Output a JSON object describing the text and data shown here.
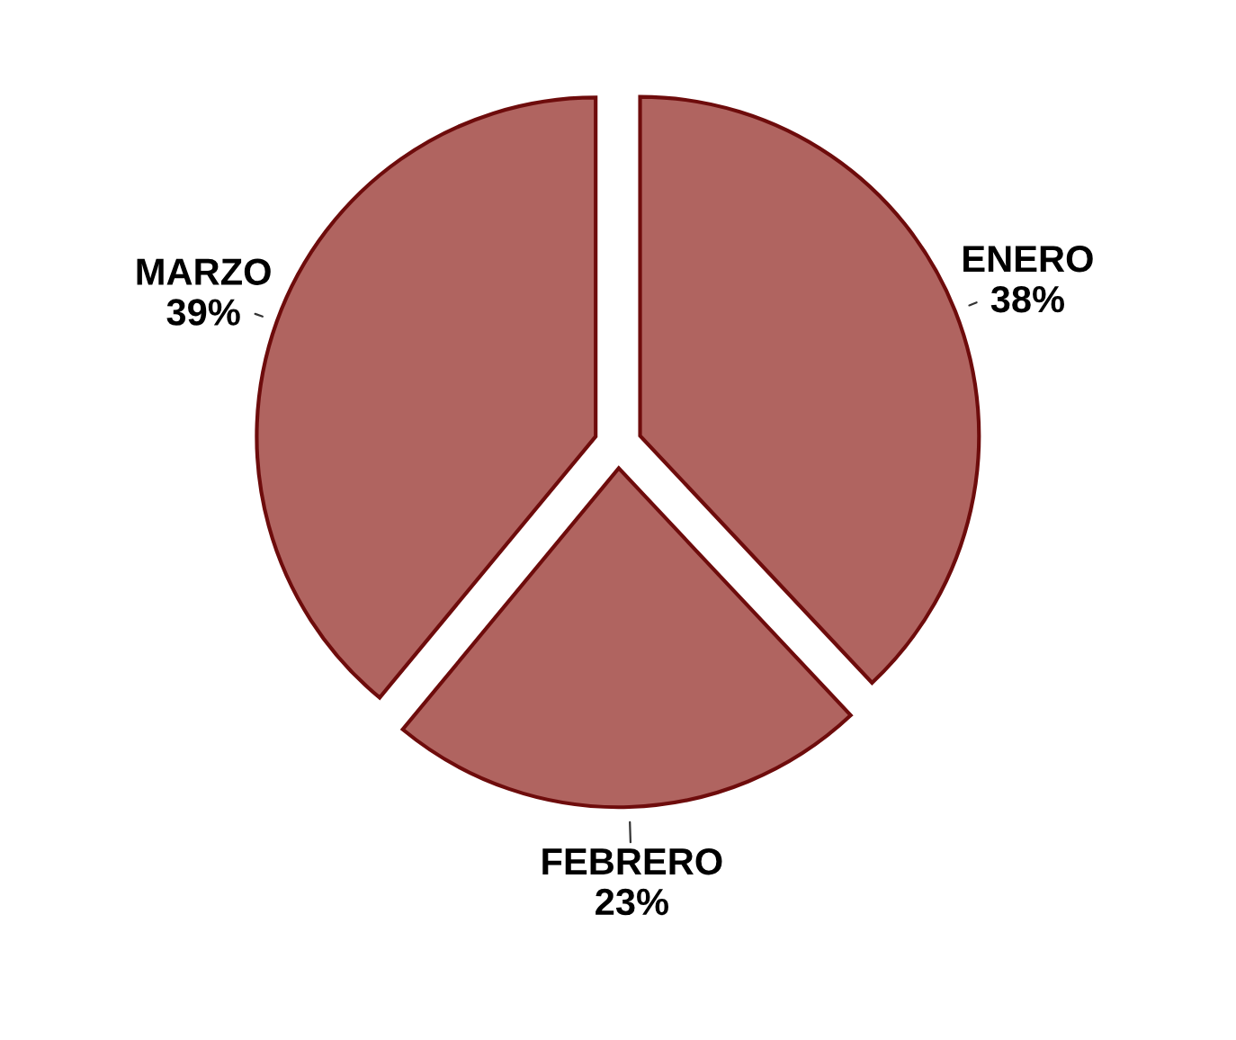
{
  "chart_data": {
    "type": "pie",
    "categories": [
      "ENERO",
      "FEBRERO",
      "MARZO"
    ],
    "values": [
      38,
      23,
      39
    ],
    "value_labels": [
      "38%",
      "23%",
      "39%"
    ],
    "colors": [
      "#b06460",
      "#b06460",
      "#b06460"
    ],
    "legend": false
  }
}
